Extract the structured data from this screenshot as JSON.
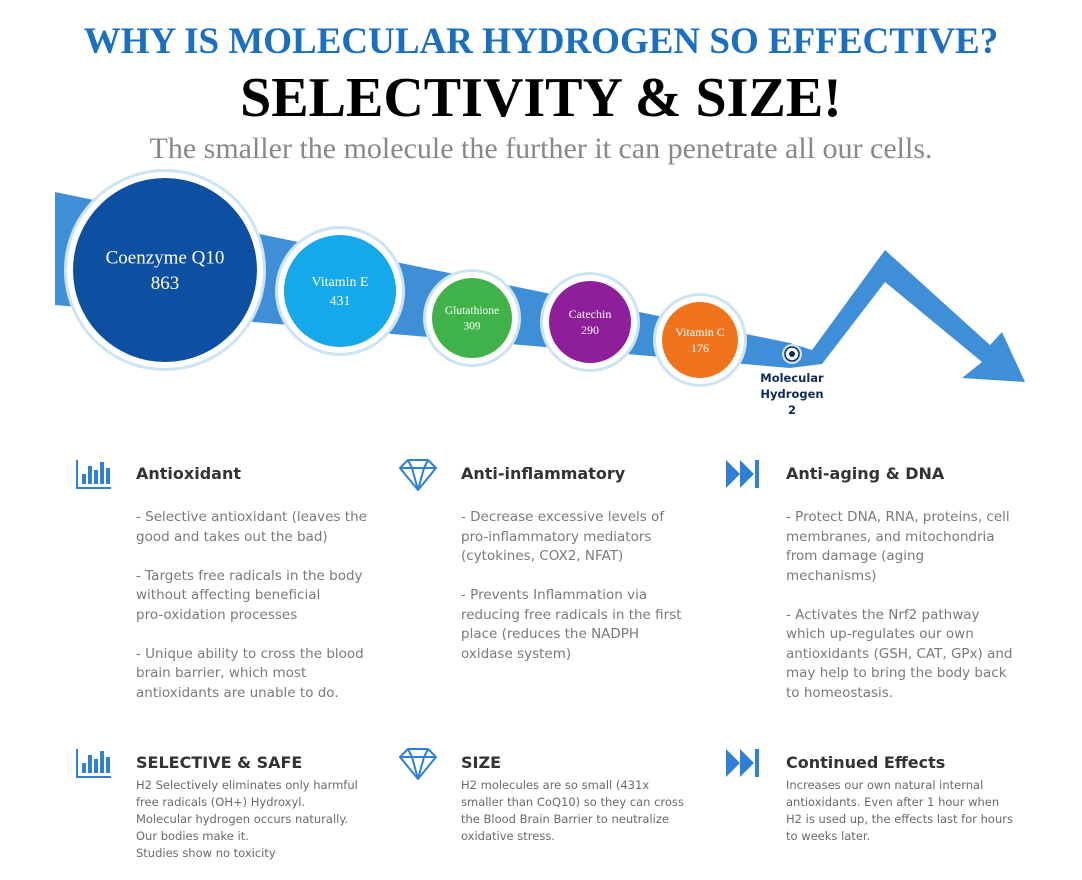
{
  "header": {
    "title": "WHY IS MOLECULAR HYDROGEN SO EFFECTIVE?",
    "headline": "SELECTIVITY & SIZE!",
    "subtitle": "The smaller the molecule the further it can penetrate all our cells."
  },
  "molecules": [
    {
      "name": "Coenzyme Q10",
      "weight": 863
    },
    {
      "name": "Vitamin E",
      "weight": 431
    },
    {
      "name": "Glutathione",
      "weight": 309
    },
    {
      "name": "Catechin",
      "weight": 290
    },
    {
      "name": "Vitamin C",
      "weight": 176
    },
    {
      "name_lines": [
        "Molecular",
        "Hydrogen"
      ],
      "weight": 2
    }
  ],
  "features": [
    {
      "title": "Antioxidant",
      "paragraphs": [
        [
          "- Selective antioxidant (leaves the",
          "good and takes out the bad)"
        ],
        [
          "- Targets free radicals in the body",
          "without affecting beneficial",
          "pro-oxidation processes"
        ],
        [
          "- Unique ability to cross the blood",
          "brain barrier, which most",
          "antioxidants are unable to do."
        ]
      ]
    },
    {
      "title": "Anti-inflammatory",
      "paragraphs": [
        [
          "- Decrease excessive levels of",
          "pro-inflammatory mediators",
          "(cytokines, COX2, NFAT)"
        ],
        [
          "- Prevents Inflammation via",
          "reducing free radicals in the first",
          "place (reduces the NADPH",
          "oxidase system)"
        ]
      ]
    },
    {
      "title": "Anti-aging & DNA",
      "paragraphs": [
        [
          "- Protect DNA, RNA, proteins, cell",
          "membranes, and mitochondria",
          "from damage (aging",
          "mechanisms)"
        ],
        [
          "- Activates the Nrf2 pathway",
          "which up-regulates our own",
          "antioxidants (GSH, CAT, GPx) and",
          "may help to bring the body back",
          "to homeostasis."
        ]
      ]
    },
    {
      "title": "SELECTIVE & SAFE",
      "paragraphs": [
        [
          "H2 Selectively eliminates only harmful",
          "free radicals (OH+) Hydroxyl.",
          "Molecular hydrogen occurs naturally.",
          "Our bodies make it.",
          "Studies show no toxicity"
        ]
      ]
    },
    {
      "title": "SIZE",
      "paragraphs": [
        [
          "H2 molecules are so small (431x",
          "smaller than CoQ10) so they can cross",
          "the Blood Brain Barrier to neutralize",
          "oxidative stress."
        ]
      ]
    },
    {
      "title": "Continued Effects",
      "paragraphs": [
        [
          "Increases our own natural internal",
          "antioxidants. Even after 1 hour when",
          "H2 is used up, the effects last for hours",
          "to weeks later."
        ]
      ]
    }
  ]
}
